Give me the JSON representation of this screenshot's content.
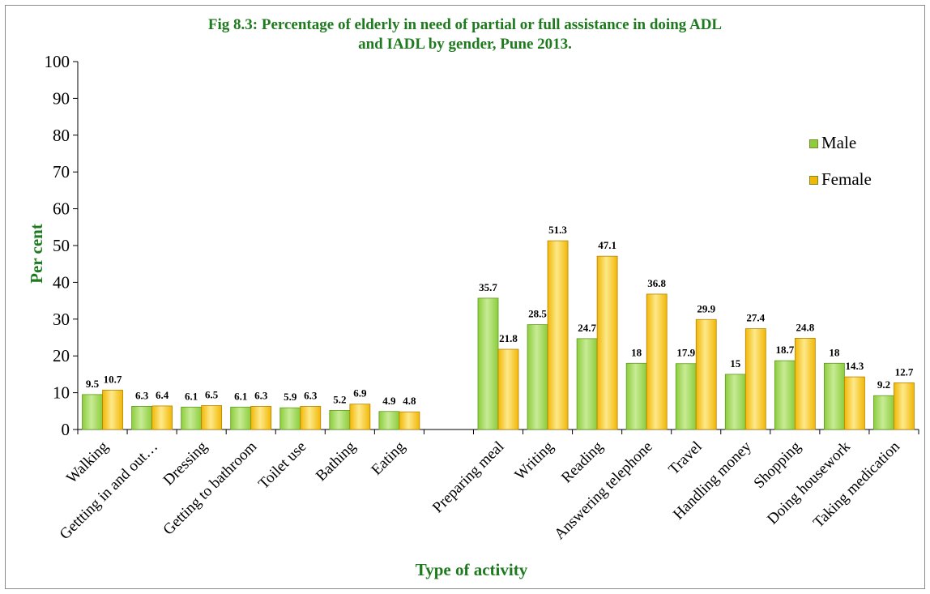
{
  "colors": {
    "male_fill": "#8ccd3c",
    "male_highlight": "#c8eb96",
    "male_edge": "#5e9a1c",
    "female_fill": "#f2b705",
    "female_highlight": "#fde98a",
    "female_edge": "#b58400",
    "title": "#1f7a1f",
    "axis": "#000000"
  },
  "chart_data": {
    "type": "bar",
    "title_line1": "Fig 8.3: Percentage of elderly in need of partial or full assistance in doing ADL",
    "title_line2": "and IADL by gender, Pune 2013.",
    "xlabel": "Type of activity",
    "ylabel": "Per cent",
    "ylim": [
      0,
      100
    ],
    "yticks": [
      "0",
      "10",
      "20",
      "30",
      "40",
      "50",
      "60",
      "70",
      "80",
      "90",
      "100"
    ],
    "legend_position": "right",
    "grid": false,
    "categories": [
      "Walking",
      "Gettting in and out…",
      "Dressing",
      "Getting to bathroom",
      "Toilet use",
      "Bathing",
      "Eating",
      "",
      "Preparing  meal",
      "Writing",
      "Reading",
      "Answering telephone",
      "Travel",
      "Handling money",
      "Shopping",
      "Doing housework",
      "Taking medication"
    ],
    "series": [
      {
        "name": "Male",
        "values": [
          9.5,
          6.3,
          6.1,
          6.1,
          5.9,
          5.2,
          4.9,
          null,
          35.7,
          28.5,
          24.7,
          18,
          17.9,
          15,
          18.7,
          18,
          9.2
        ],
        "labels": [
          "9.5",
          "6.3",
          "6.1",
          "6.1",
          "5.9",
          "5.2",
          "4.9",
          "",
          "35.7",
          "28.5",
          "24.7",
          "18",
          "17.9",
          "15",
          "18.7",
          "18",
          "9.2"
        ]
      },
      {
        "name": "Female",
        "values": [
          10.7,
          6.4,
          6.5,
          6.3,
          6.3,
          6.9,
          4.8,
          null,
          21.8,
          51.3,
          47.1,
          36.8,
          29.9,
          27.4,
          24.8,
          14.3,
          12.7
        ],
        "labels": [
          "10.7",
          "6.4",
          "6.5",
          "6.3",
          "6.3",
          "6.9",
          "4.8",
          "",
          "21.8",
          "51.3",
          "47.1",
          "36.8",
          "29.9",
          "27.4",
          "24.8",
          "14.3",
          "12.7"
        ]
      }
    ]
  }
}
